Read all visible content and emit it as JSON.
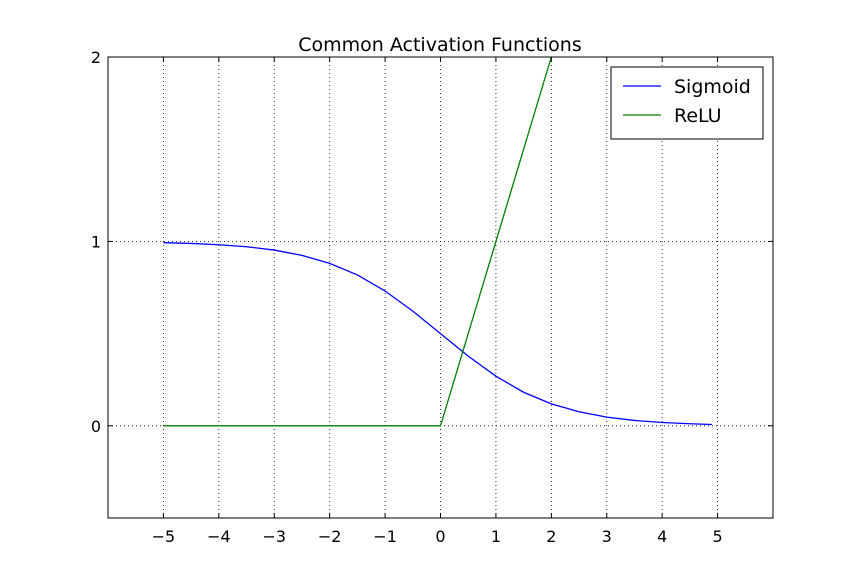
{
  "chart_data": {
    "type": "line",
    "title": "Common Activation Functions",
    "xlabel": "",
    "ylabel": "",
    "xlim": [
      -6,
      6
    ],
    "ylim": [
      -0.5,
      2
    ],
    "xticks": [
      -5,
      -4,
      -3,
      -2,
      -1,
      0,
      1,
      2,
      3,
      4,
      5
    ],
    "xtick_labels": [
      "−5",
      "−4",
      "−3",
      "−2",
      "−1",
      "0",
      "1",
      "2",
      "3",
      "4",
      "5"
    ],
    "yticks": [
      0,
      1,
      2
    ],
    "ytick_labels": [
      "0",
      "1",
      "2"
    ],
    "grid": true,
    "grid_style": "dotted",
    "legend_position": "upper-right",
    "series": [
      {
        "name": "Sigmoid",
        "color": "#0000ff",
        "x": [
          -5,
          -4.5,
          -4,
          -3.5,
          -3,
          -2.5,
          -2,
          -1.5,
          -1,
          -0.5,
          0,
          0.5,
          1,
          1.5,
          2,
          2.5,
          3,
          3.5,
          4,
          4.5,
          4.9
        ],
        "y": [
          0.993,
          0.989,
          0.982,
          0.971,
          0.953,
          0.924,
          0.881,
          0.818,
          0.731,
          0.622,
          0.5,
          0.378,
          0.269,
          0.182,
          0.119,
          0.076,
          0.047,
          0.029,
          0.018,
          0.011,
          0.007
        ]
      },
      {
        "name": "ReLU",
        "color": "#008000",
        "x": [
          -5,
          0,
          2
        ],
        "y": [
          0,
          0,
          2
        ]
      }
    ]
  }
}
